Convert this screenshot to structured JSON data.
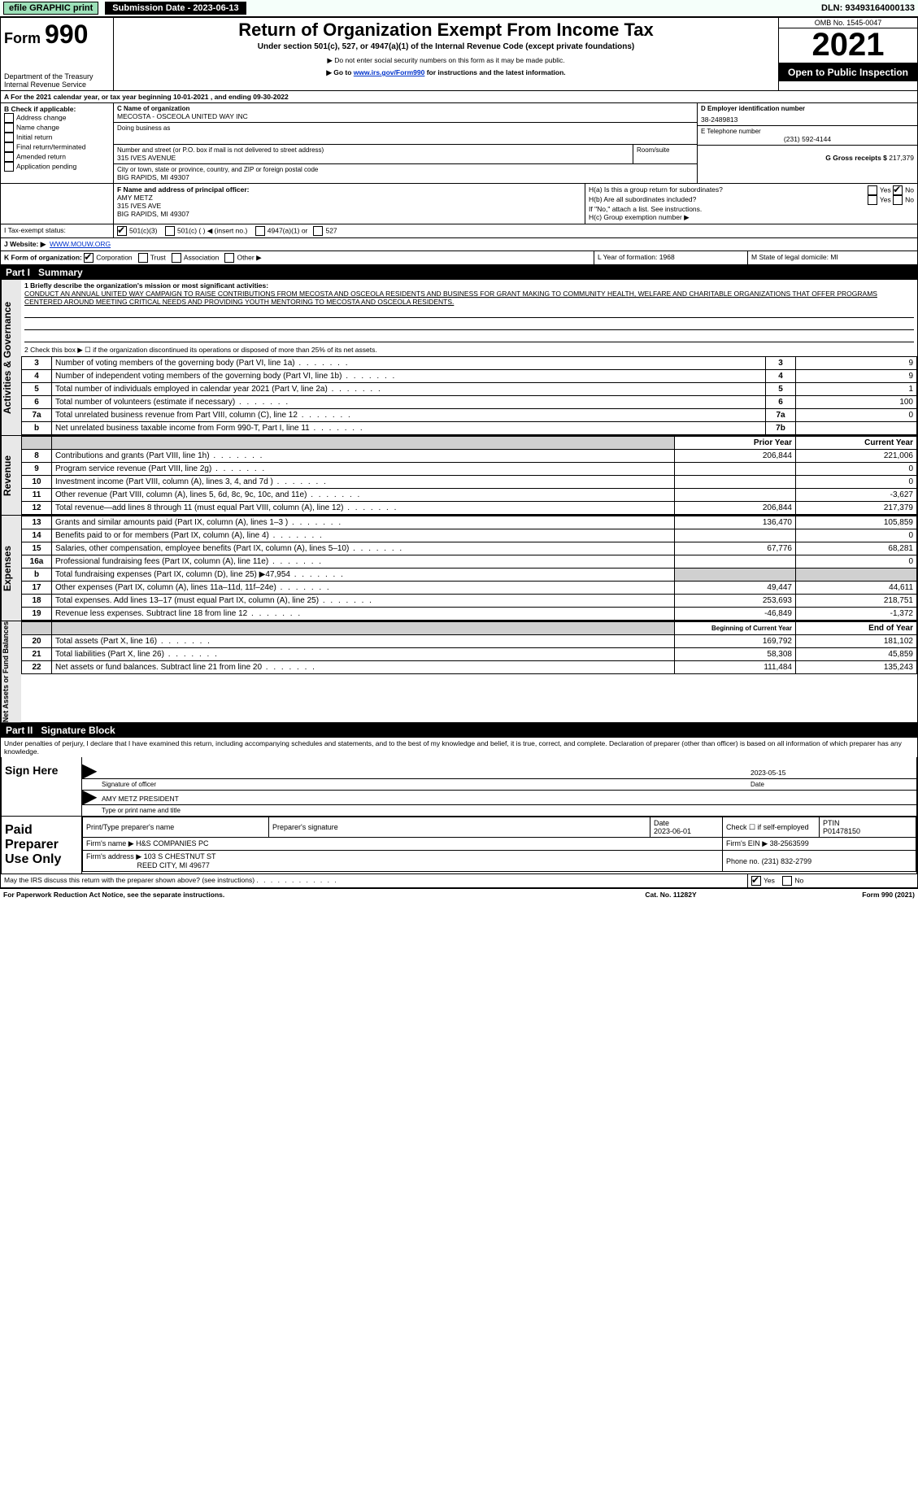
{
  "topbar": {
    "efile": "efile GRAPHIC print",
    "submission_label": "Submission Date - 2023-06-13",
    "dln_label": "DLN: 93493164000133"
  },
  "header": {
    "form_prefix": "Form",
    "form_number": "990",
    "dept": "Department of the Treasury",
    "irs": "Internal Revenue Service",
    "title": "Return of Organization Exempt From Income Tax",
    "subtitle": "Under section 501(c), 527, or 4947(a)(1) of the Internal Revenue Code (except private foundations)",
    "note1": "▶ Do not enter social security numbers on this form as it may be made public.",
    "note2_pre": "▶ Go to ",
    "note2_link": "www.irs.gov/Form990",
    "note2_post": " for instructions and the latest information.",
    "omb": "OMB No. 1545-0047",
    "year": "2021",
    "badge": "Open to Public Inspection"
  },
  "period": {
    "line_a": "A For the 2021 calendar year, or tax year beginning 10-01-2021    , and ending 09-30-2022"
  },
  "boxB": {
    "header": "B Check if applicable:",
    "items": [
      "Address change",
      "Name change",
      "Initial return",
      "Final return/terminated",
      "Amended return",
      "Application pending"
    ]
  },
  "boxC": {
    "label_name": "C Name of organization",
    "org_name": "MECOSTA - OSCEOLA UNITED WAY INC",
    "dba_label": "Doing business as",
    "addr_label": "Number and street (or P.O. box if mail is not delivered to street address)",
    "room_label": "Room/suite",
    "addr": "315 IVES AVENUE",
    "city_label": "City or town, state or province, country, and ZIP or foreign postal code",
    "city": "BIG RAPIDS, MI  49307"
  },
  "boxD": {
    "label": "D Employer identification number",
    "value": "38-2489813"
  },
  "boxE": {
    "label": "E Telephone number",
    "value": "(231) 592-4144"
  },
  "boxG": {
    "label": "G Gross receipts $",
    "value": "217,379"
  },
  "boxF": {
    "label": "F Name and address of principal officer:",
    "name": "AMY METZ",
    "line1": "315 IVES AVE",
    "line2": "BIG RAPIDS, MI  49307"
  },
  "boxH": {
    "ha": "H(a)  Is this a group return for subordinates?",
    "hb": "H(b)  Are all subordinates included?",
    "hb_note": "If \"No,\" attach a list. See instructions.",
    "hc": "H(c)  Group exemption number ▶",
    "yes": "Yes",
    "no": "No"
  },
  "boxI": {
    "label": "I  Tax-exempt status:",
    "opts": [
      "501(c)(3)",
      "501(c) (    ) ◀ (insert no.)",
      "4947(a)(1) or",
      "527"
    ]
  },
  "boxJ": {
    "label": "J  Website: ▶",
    "value": "WWW.MOUW.ORG"
  },
  "boxK": {
    "label": "K Form of organization:",
    "opts": [
      "Corporation",
      "Trust",
      "Association",
      "Other ▶"
    ]
  },
  "boxL": {
    "label": "L Year of formation: 1968"
  },
  "boxM": {
    "label": "M State of legal domicile: MI"
  },
  "partI": {
    "bar": "Part I",
    "title": "Summary",
    "line1_label": "1  Briefly describe the organization's mission or most significant activities:",
    "mission": "CONDUCT AN ANNUAL UNITED WAY CAMPAIGN TO RAISE CONTRIBUTIONS FROM MECOSTA AND OSCEOLA RESIDENTS AND BUSINESS FOR GRANT MAKING TO COMMUNITY HEALTH, WELFARE AND CHARITABLE ORGANIZATIONS THAT OFFER PROGRAMS CENTERED AROUND MEETING CRITICAL NEEDS AND PROVIDING YOUTH MENTORING TO MECOSTA AND OSCEOLA RESIDENTS.",
    "line2": "2  Check this box ▶ ☐ if the organization discontinued its operations or disposed of more than 25% of its net assets.",
    "gov_header": "Activities & Governance",
    "rev_header": "Revenue",
    "exp_header": "Expenses",
    "net_header": "Net Assets or Fund Balances",
    "gov_rows": [
      {
        "n": "3",
        "label": "Number of voting members of the governing body (Part VI, line 1a)",
        "box": "3",
        "v": "9"
      },
      {
        "n": "4",
        "label": "Number of independent voting members of the governing body (Part VI, line 1b)",
        "box": "4",
        "v": "9"
      },
      {
        "n": "5",
        "label": "Total number of individuals employed in calendar year 2021 (Part V, line 2a)",
        "box": "5",
        "v": "1"
      },
      {
        "n": "6",
        "label": "Total number of volunteers (estimate if necessary)",
        "box": "6",
        "v": "100"
      },
      {
        "n": "7a",
        "label": "Total unrelated business revenue from Part VIII, column (C), line 12",
        "box": "7a",
        "v": "0"
      },
      {
        "n": "b",
        "label": "Net unrelated business taxable income from Form 990-T, Part I, line 11",
        "box": "7b",
        "v": ""
      }
    ],
    "col_prior": "Prior Year",
    "col_current": "Current Year",
    "rev_rows": [
      {
        "n": "8",
        "label": "Contributions and grants (Part VIII, line 1h)",
        "p": "206,844",
        "c": "221,006"
      },
      {
        "n": "9",
        "label": "Program service revenue (Part VIII, line 2g)",
        "p": "",
        "c": "0"
      },
      {
        "n": "10",
        "label": "Investment income (Part VIII, column (A), lines 3, 4, and 7d )",
        "p": "",
        "c": "0"
      },
      {
        "n": "11",
        "label": "Other revenue (Part VIII, column (A), lines 5, 6d, 8c, 9c, 10c, and 11e)",
        "p": "",
        "c": "-3,627"
      },
      {
        "n": "12",
        "label": "Total revenue—add lines 8 through 11 (must equal Part VIII, column (A), line 12)",
        "p": "206,844",
        "c": "217,379"
      }
    ],
    "exp_rows": [
      {
        "n": "13",
        "label": "Grants and similar amounts paid (Part IX, column (A), lines 1–3 )",
        "p": "136,470",
        "c": "105,859"
      },
      {
        "n": "14",
        "label": "Benefits paid to or for members (Part IX, column (A), line 4)",
        "p": "",
        "c": "0"
      },
      {
        "n": "15",
        "label": "Salaries, other compensation, employee benefits (Part IX, column (A), lines 5–10)",
        "p": "67,776",
        "c": "68,281"
      },
      {
        "n": "16a",
        "label": "Professional fundraising fees (Part IX, column (A), line 11e)",
        "p": "",
        "c": "0"
      },
      {
        "n": "b",
        "label": "Total fundraising expenses (Part IX, column (D), line 25) ▶47,954",
        "p": "SHADE",
        "c": "SHADE"
      },
      {
        "n": "17",
        "label": "Other expenses (Part IX, column (A), lines 11a–11d, 11f–24e)",
        "p": "49,447",
        "c": "44,611"
      },
      {
        "n": "18",
        "label": "Total expenses. Add lines 13–17 (must equal Part IX, column (A), line 25)",
        "p": "253,693",
        "c": "218,751"
      },
      {
        "n": "19",
        "label": "Revenue less expenses. Subtract line 18 from line 12",
        "p": "-46,849",
        "c": "-1,372"
      }
    ],
    "col_begin": "Beginning of Current Year",
    "col_end": "End of Year",
    "net_rows": [
      {
        "n": "20",
        "label": "Total assets (Part X, line 16)",
        "p": "169,792",
        "c": "181,102"
      },
      {
        "n": "21",
        "label": "Total liabilities (Part X, line 26)",
        "p": "58,308",
        "c": "45,859"
      },
      {
        "n": "22",
        "label": "Net assets or fund balances. Subtract line 21 from line 20",
        "p": "111,484",
        "c": "135,243"
      }
    ]
  },
  "partII": {
    "bar": "Part II",
    "title": "Signature Block",
    "declaration": "Under penalties of perjury, I declare that I have examined this return, including accompanying schedules and statements, and to the best of my knowledge and belief, it is true, correct, and complete. Declaration of preparer (other than officer) is based on all information of which preparer has any knowledge.",
    "sign_here": "Sign Here",
    "sig_officer": "Signature of officer",
    "sig_date": "2023-05-15",
    "date_label": "Date",
    "name_title": "AMY METZ  PRESIDENT",
    "name_title_label": "Type or print name and title",
    "paid": "Paid Preparer Use Only",
    "col_print": "Print/Type preparer's name",
    "col_sig": "Preparer's signature",
    "col_date": "Date",
    "date_val": "2023-06-01",
    "check_self": "Check ☐ if self-employed",
    "ptin_label": "PTIN",
    "ptin": "P01478150",
    "firm_name_label": "Firm's name    ▶",
    "firm_name": "H&S COMPANIES PC",
    "firm_ein_label": "Firm's EIN ▶",
    "firm_ein": "38-2563599",
    "firm_addr_label": "Firm's address ▶",
    "firm_addr1": "103 S CHESTNUT ST",
    "firm_addr2": "REED CITY, MI  49677",
    "phone_label": "Phone no.",
    "phone": "(231) 832-2799",
    "may_irs": "May the IRS discuss this return with the preparer shown above? (see instructions)",
    "yes": "Yes",
    "no": "No"
  },
  "footer": {
    "left": "For Paperwork Reduction Act Notice, see the separate instructions.",
    "mid": "Cat. No. 11282Y",
    "right": "Form 990 (2021)"
  }
}
